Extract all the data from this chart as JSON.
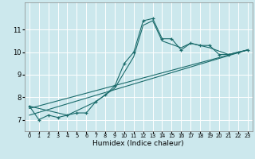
{
  "title": "",
  "xlabel": "Humidex (Indice chaleur)",
  "ylabel": "",
  "bg_color": "#cce8ed",
  "grid_color": "#ffffff",
  "line_color": "#1a6b6b",
  "marker_color": "#1a6b6b",
  "xlim": [
    -0.5,
    23.5
  ],
  "ylim": [
    6.5,
    12.2
  ],
  "xticks": [
    0,
    1,
    2,
    3,
    4,
    5,
    6,
    7,
    8,
    9,
    10,
    11,
    12,
    13,
    14,
    15,
    16,
    17,
    18,
    19,
    20,
    21,
    22,
    23
  ],
  "yticks": [
    7,
    8,
    9,
    10,
    11
  ],
  "series1_x": [
    0,
    1,
    2,
    3,
    4,
    5,
    6,
    7,
    8,
    9,
    10,
    11,
    12,
    13,
    14,
    15,
    16,
    17,
    18,
    19,
    20,
    21,
    22,
    23
  ],
  "series1_y": [
    7.6,
    7.0,
    7.2,
    7.1,
    7.2,
    7.3,
    7.3,
    7.8,
    8.1,
    8.5,
    9.5,
    10.0,
    11.4,
    11.5,
    10.6,
    10.6,
    10.1,
    10.4,
    10.3,
    10.3,
    9.9,
    9.9,
    10.0,
    10.1
  ],
  "series2_x": [
    0,
    4,
    7,
    9,
    11,
    12,
    13,
    14,
    16,
    17,
    19,
    21,
    23
  ],
  "series2_y": [
    7.6,
    7.2,
    7.8,
    8.4,
    9.8,
    11.2,
    11.4,
    10.5,
    10.2,
    10.4,
    10.2,
    9.9,
    10.1
  ],
  "series3_x": [
    0,
    23
  ],
  "series3_y": [
    7.5,
    10.1
  ],
  "series4_x": [
    0,
    23
  ],
  "series4_y": [
    7.2,
    10.1
  ]
}
